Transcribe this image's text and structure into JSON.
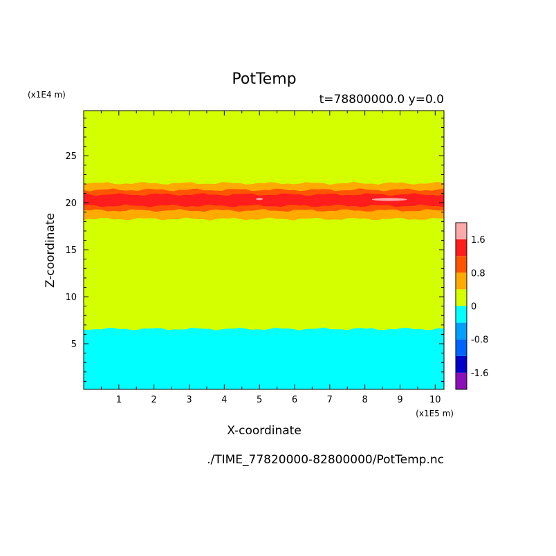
{
  "chart_data": {
    "type": "heatmap",
    "title": "PotTemp",
    "subtitle": "t=78800000.0 y=0.0",
    "xlabel": "X-coordinate",
    "ylabel": "Z-coordinate",
    "x_unit": "(x1E5 m)",
    "y_unit": "(x1E4 m)",
    "footer": "./TIME_77820000-82800000/PotTemp.nc",
    "xlim": [
      0,
      10.25
    ],
    "ylim": [
      0.15,
      29.8
    ],
    "x_ticks": [
      1,
      2,
      3,
      4,
      5,
      6,
      7,
      8,
      9,
      10
    ],
    "y_ticks": [
      5,
      10,
      15,
      20,
      25
    ],
    "colorbar": {
      "levels": [
        -2.0,
        -1.6,
        -1.2,
        -0.8,
        -0.4,
        0,
        0.4,
        0.8,
        1.2,
        1.6,
        2.0
      ],
      "colors": [
        "#8b10b8",
        "#0000c8",
        "#0064ff",
        "#00a0ff",
        "#00ffff",
        "#d4ff00",
        "#ffaa00",
        "#ff5500",
        "#ff1c1c",
        "#ffaaaa"
      ],
      "tick_labels": [
        "-1.6",
        "-0.8",
        "0",
        "0.8",
        "1.6"
      ],
      "tick_values": [
        -1.6,
        -0.8,
        0,
        0.8,
        1.6
      ]
    },
    "bands": [
      {
        "z_min": 0.15,
        "z_max": 6.6,
        "value_range": [
          -0.4,
          0
        ],
        "color": "#00ffff"
      },
      {
        "z_min": 6.6,
        "z_max": 18.3,
        "value_range": [
          0,
          0.4
        ],
        "color": "#d4ff00"
      },
      {
        "z_min": 18.3,
        "z_max": 19.2,
        "value_range": [
          0.4,
          0.8
        ],
        "color": "#ffaa00"
      },
      {
        "z_min": 19.2,
        "z_max": 19.7,
        "value_range": [
          0.8,
          1.2
        ],
        "color": "#ff5500"
      },
      {
        "z_min": 19.7,
        "z_max": 20.9,
        "value_range": [
          1.2,
          1.6
        ],
        "color": "#ff1c1c"
      },
      {
        "z_min": 20.9,
        "z_max": 21.4,
        "value_range": [
          0.8,
          1.2
        ],
        "color": "#ff5500"
      },
      {
        "z_min": 21.4,
        "z_max": 22.1,
        "value_range": [
          0.4,
          0.8
        ],
        "color": "#ffaa00"
      },
      {
        "z_min": 22.1,
        "z_max": 29.8,
        "value_range": [
          0,
          0.4
        ],
        "color": "#d4ff00"
      }
    ],
    "hotspots": [
      {
        "x_range": [
          8.2,
          9.2
        ],
        "z_range": [
          20.2,
          20.5
        ],
        "color": "#ffaaaa"
      },
      {
        "x_range": [
          4.9,
          5.1
        ],
        "z_range": [
          20.3,
          20.5
        ],
        "color": "#ffaaaa"
      }
    ]
  }
}
